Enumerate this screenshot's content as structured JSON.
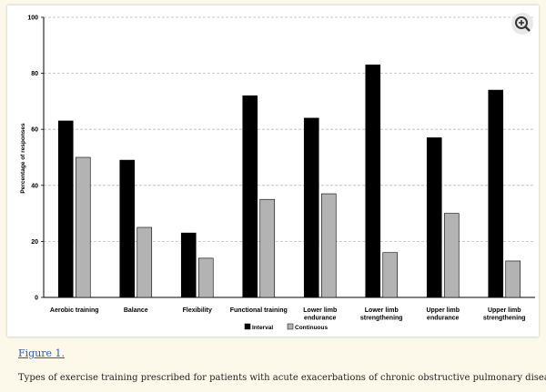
{
  "figure": {
    "link_label": "Figure 1.",
    "caption": "Types of exercise training prescribed for patients with acute exacerbations of chronic obstructive pulmonary disease."
  },
  "icons": {
    "zoom": "zoom-in-icon"
  },
  "colors": {
    "interval": "#000000",
    "continuous": "#b3b3b3",
    "grid": "#bbbbbb"
  },
  "chart_data": {
    "type": "bar",
    "title": "",
    "xlabel": "",
    "ylabel": "Percentage of responses",
    "ylim": [
      0,
      100
    ],
    "yticks": [
      0,
      20,
      40,
      60,
      80,
      100
    ],
    "grid": true,
    "legend_position": "bottom",
    "categories": [
      [
        "Aerobic training"
      ],
      [
        "Balance"
      ],
      [
        "Flexibility"
      ],
      [
        "Functional training"
      ],
      [
        "Lower limb",
        "endurance"
      ],
      [
        "Lower limb",
        "strengthening"
      ],
      [
        "Upper limb",
        "endurance"
      ],
      [
        "Upper limb",
        "strengthening"
      ]
    ],
    "series": [
      {
        "name": "Interval",
        "values": [
          63,
          49,
          23,
          72,
          64,
          83,
          57,
          74
        ]
      },
      {
        "name": "Continuous",
        "values": [
          50,
          25,
          14,
          35,
          37,
          16,
          30,
          13
        ]
      }
    ]
  }
}
